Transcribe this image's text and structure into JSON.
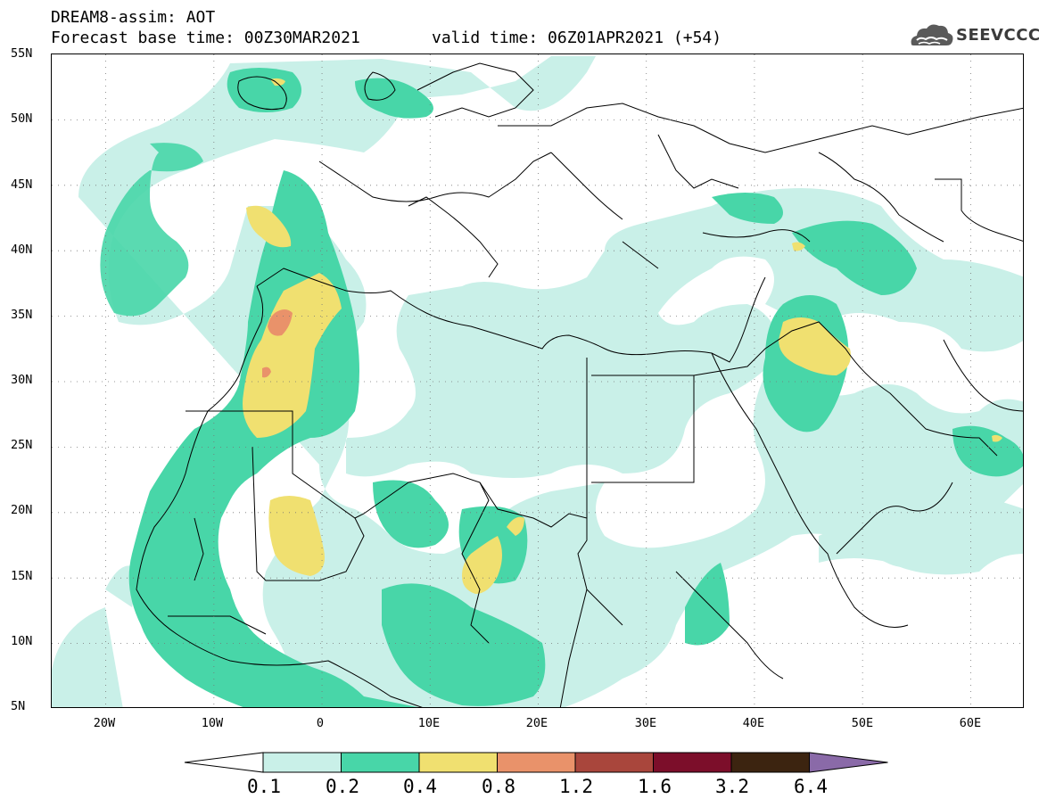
{
  "title": {
    "line1": "DREAM8-assim: AOT",
    "line2": "Forecast base time: 00Z30MAR2021",
    "valid": "valid time: 06Z01APR2021 (+54)"
  },
  "logo": {
    "text": "SEEVCCC",
    "icon": "cloud-icon"
  },
  "axes": {
    "lat_labels": [
      "55N",
      "50N",
      "45N",
      "40N",
      "35N",
      "30N",
      "25N",
      "20N",
      "15N",
      "10N",
      "5N"
    ],
    "lon_labels": [
      "20W",
      "10W",
      "0",
      "10E",
      "20E",
      "30E",
      "40E",
      "50E",
      "60E"
    ]
  },
  "colorbar": {
    "labels": [
      "0.1",
      "0.2",
      "0.4",
      "0.8",
      "1.2",
      "1.6",
      "3.2",
      "6.4"
    ],
    "colors": [
      "#ffffff",
      "#c9f0e8",
      "#48d6a8",
      "#f0e070",
      "#e9926a",
      "#a9463c",
      "#7c0e2a",
      "#3c2410",
      "#8a6aa8"
    ]
  },
  "map": {
    "region": "North Africa, Middle East and Europe",
    "lat_range": [
      5,
      55
    ],
    "lon_range": [
      -25,
      65
    ],
    "levels": {
      "light": "0.1-0.2",
      "green": "0.2-0.4",
      "yellow": "0.4-0.8",
      "orange": "0.8-1.2"
    }
  }
}
